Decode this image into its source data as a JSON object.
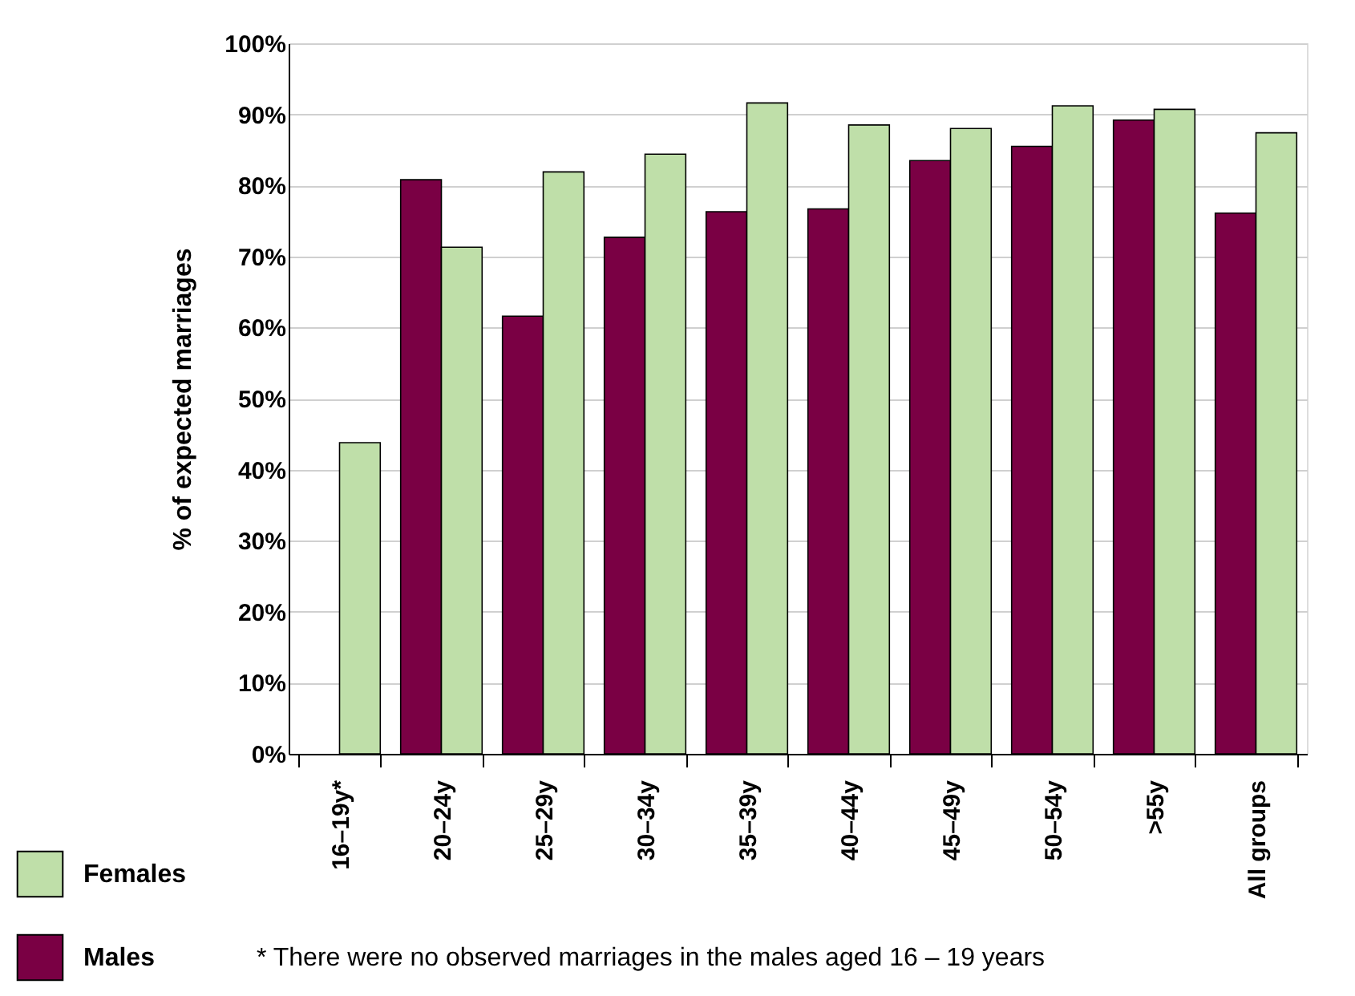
{
  "chart_data": {
    "type": "bar",
    "ylabel": "% of expected marriages",
    "categories": [
      "16–19y*",
      "20–24y",
      "25–29y",
      "30–34y",
      "35–39y",
      "40–44y",
      "45–49y",
      "50–54y",
      ">55y",
      "All groups"
    ],
    "series": [
      {
        "name": "Males",
        "color": "#7a0044",
        "values": [
          null,
          80.8,
          61.6,
          72.7,
          76.3,
          76.7,
          83.5,
          85.5,
          89.2,
          76.1
        ]
      },
      {
        "name": "Females",
        "color": "#bfdfa9",
        "values": [
          43.8,
          71.3,
          81.9,
          84.4,
          91.6,
          88.5,
          88.0,
          91.2,
          90.7,
          87.4
        ]
      }
    ],
    "ylim": [
      0,
      100
    ],
    "yticks": [
      {
        "value": 0,
        "label": "0%"
      },
      {
        "value": 10,
        "label": "10%"
      },
      {
        "value": 20,
        "label": "20%"
      },
      {
        "value": 30,
        "label": "30%"
      },
      {
        "value": 40,
        "label": "40%"
      },
      {
        "value": 50,
        "label": "50%"
      },
      {
        "value": 60,
        "label": "60%"
      },
      {
        "value": 70,
        "label": "70%"
      },
      {
        "value": 80,
        "label": "80%"
      },
      {
        "value": 90,
        "label": "90%"
      },
      {
        "value": 100,
        "label": "100%"
      }
    ],
    "grid": "y",
    "legend": "bottom left",
    "annotations": [
      "* There were no observed marriages in the males aged 16 – 19 years"
    ]
  }
}
